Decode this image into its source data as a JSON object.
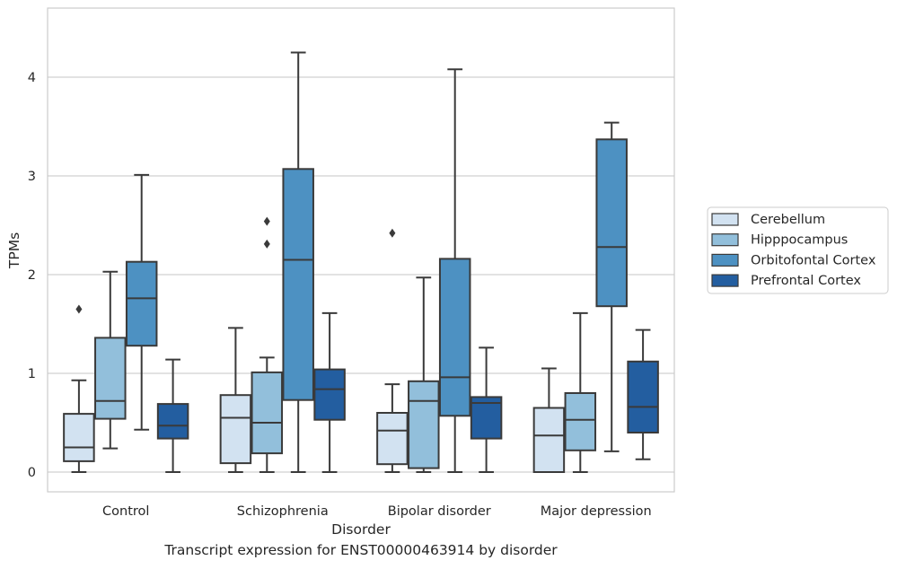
{
  "caption": "Transcript expression for ENST00000463914 by disorder",
  "chart_data": {
    "type": "box",
    "xlabel": "Disorder",
    "ylabel": "TPMs",
    "ylim": [
      -0.2,
      4.7
    ],
    "yticks": [
      0,
      1,
      2,
      3,
      4
    ],
    "grid": "horizontal",
    "legend_position": "right",
    "categories": [
      "Control",
      "Schizophrenia",
      "Bipolar disorder",
      "Major depression"
    ],
    "colors": {
      "Cerebellum": "#d2e2f1",
      "Hipppocampus": "#92bfdb",
      "Orbitofontal Cortex": "#4d91c2",
      "Prefrontal Cortex": "#235ea0",
      "edge": "#3a3a3a",
      "grid": "#d0d0d0"
    },
    "series": [
      {
        "name": "Cerebellum",
        "boxes": [
          {
            "whislo": 0.0,
            "q1": 0.11,
            "med": 0.25,
            "q3": 0.59,
            "whishi": 0.93,
            "fliers": [
              1.65
            ]
          },
          {
            "whislo": 0.0,
            "q1": 0.09,
            "med": 0.55,
            "q3": 0.78,
            "whishi": 1.46,
            "fliers": []
          },
          {
            "whislo": 0.0,
            "q1": 0.08,
            "med": 0.42,
            "q3": 0.6,
            "whishi": 0.89,
            "fliers": [
              2.42
            ]
          },
          {
            "whislo": 0.0,
            "q1": 0.0,
            "med": 0.37,
            "q3": 0.65,
            "whishi": 1.05,
            "fliers": []
          }
        ]
      },
      {
        "name": "Hipppocampus",
        "boxes": [
          {
            "whislo": 0.24,
            "q1": 0.54,
            "med": 0.72,
            "q3": 1.36,
            "whishi": 2.03,
            "fliers": []
          },
          {
            "whislo": 0.0,
            "q1": 0.19,
            "med": 0.5,
            "q3": 1.01,
            "whishi": 1.16,
            "fliers": [
              2.31,
              2.54
            ]
          },
          {
            "whislo": 0.0,
            "q1": 0.04,
            "med": 0.72,
            "q3": 0.92,
            "whishi": 1.97,
            "fliers": []
          },
          {
            "whislo": 0.0,
            "q1": 0.22,
            "med": 0.53,
            "q3": 0.8,
            "whishi": 1.61,
            "fliers": []
          }
        ]
      },
      {
        "name": "Orbitofontal Cortex",
        "boxes": [
          {
            "whislo": 0.43,
            "q1": 1.28,
            "med": 1.76,
            "q3": 2.13,
            "whishi": 3.01,
            "fliers": []
          },
          {
            "whislo": 0.0,
            "q1": 0.73,
            "med": 2.15,
            "q3": 3.07,
            "whishi": 4.25,
            "fliers": []
          },
          {
            "whislo": 0.0,
            "q1": 0.57,
            "med": 0.96,
            "q3": 2.16,
            "whishi": 4.08,
            "fliers": []
          },
          {
            "whislo": 0.21,
            "q1": 1.68,
            "med": 2.28,
            "q3": 3.37,
            "whishi": 3.54,
            "fliers": []
          }
        ]
      },
      {
        "name": "Prefrontal Cortex",
        "boxes": [
          {
            "whislo": 0.0,
            "q1": 0.34,
            "med": 0.47,
            "q3": 0.69,
            "whishi": 1.14,
            "fliers": []
          },
          {
            "whislo": 0.0,
            "q1": 0.53,
            "med": 0.84,
            "q3": 1.04,
            "whishi": 1.61,
            "fliers": []
          },
          {
            "whislo": 0.0,
            "q1": 0.34,
            "med": 0.7,
            "q3": 0.76,
            "whishi": 1.26,
            "fliers": []
          },
          {
            "whislo": 0.13,
            "q1": 0.4,
            "med": 0.66,
            "q3": 1.12,
            "whishi": 1.44,
            "fliers": []
          }
        ]
      }
    ]
  }
}
